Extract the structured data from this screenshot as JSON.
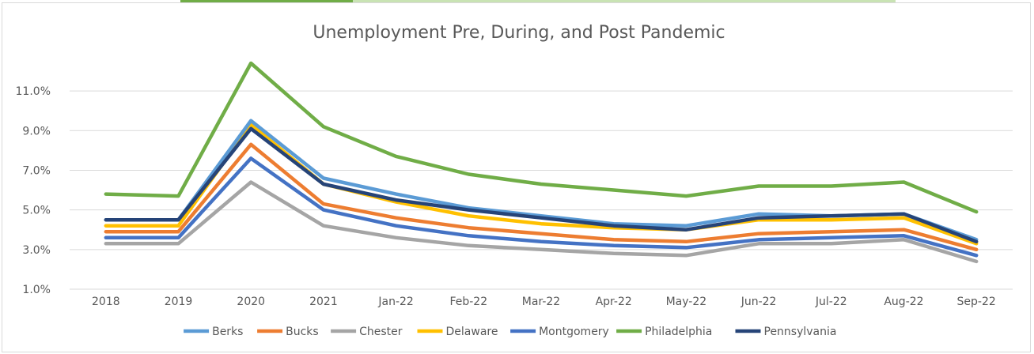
{
  "chart_data": {
    "type": "line",
    "title": "Unemployment Pre, During, and Post Pandemic",
    "xlabel": "",
    "ylabel": "",
    "categories": [
      "2018",
      "2019",
      "2020",
      "2021",
      "Jan-22",
      "Feb-22",
      "Mar-22",
      "Apr-22",
      "May-22",
      "Jun-22",
      "Jul-22",
      "Aug-22",
      "Sep-22"
    ],
    "ylim": [
      0.01,
      0.12
    ],
    "yticks": [
      0.01,
      0.03,
      0.05,
      0.07,
      0.09,
      0.11
    ],
    "ytick_labels": [
      "1.0%",
      "3.0%",
      "5.0%",
      "7.0%",
      "9.0%",
      "11.0%"
    ],
    "grid": true,
    "legend_position": "bottom",
    "series": [
      {
        "name": "Berks",
        "color": "#5b9bd5",
        "values": [
          0.045,
          0.045,
          0.095,
          0.066,
          0.058,
          0.051,
          0.047,
          0.043,
          0.042,
          0.048,
          0.047,
          0.048,
          0.035
        ]
      },
      {
        "name": "Bucks",
        "color": "#ed7d31",
        "values": [
          0.039,
          0.039,
          0.083,
          0.053,
          0.046,
          0.041,
          0.038,
          0.035,
          0.034,
          0.038,
          0.039,
          0.04,
          0.03
        ]
      },
      {
        "name": "Chester",
        "color": "#a5a5a5",
        "values": [
          0.033,
          0.033,
          0.064,
          0.042,
          0.036,
          0.032,
          0.03,
          0.028,
          0.027,
          0.033,
          0.033,
          0.035,
          0.024
        ]
      },
      {
        "name": "Delaware",
        "color": "#ffc000",
        "values": [
          0.042,
          0.042,
          0.093,
          0.063,
          0.054,
          0.047,
          0.043,
          0.041,
          0.04,
          0.045,
          0.045,
          0.046,
          0.033
        ]
      },
      {
        "name": "Montgomery",
        "color": "#4472c4",
        "values": [
          0.036,
          0.036,
          0.076,
          0.05,
          0.042,
          0.037,
          0.034,
          0.032,
          0.031,
          0.035,
          0.036,
          0.037,
          0.027
        ]
      },
      {
        "name": "Philadelphia",
        "color": "#70ad47",
        "values": [
          0.058,
          0.057,
          0.124,
          0.092,
          0.077,
          0.068,
          0.063,
          0.06,
          0.057,
          0.062,
          0.062,
          0.064,
          0.049
        ]
      },
      {
        "name": "Pennsylvania",
        "color": "#264478",
        "values": [
          0.045,
          0.045,
          0.091,
          0.063,
          0.055,
          0.05,
          0.046,
          0.042,
          0.04,
          0.046,
          0.047,
          0.048,
          0.034
        ]
      }
    ]
  },
  "top_strip_colors": [
    "#70ad47",
    "#c9e3b4"
  ]
}
